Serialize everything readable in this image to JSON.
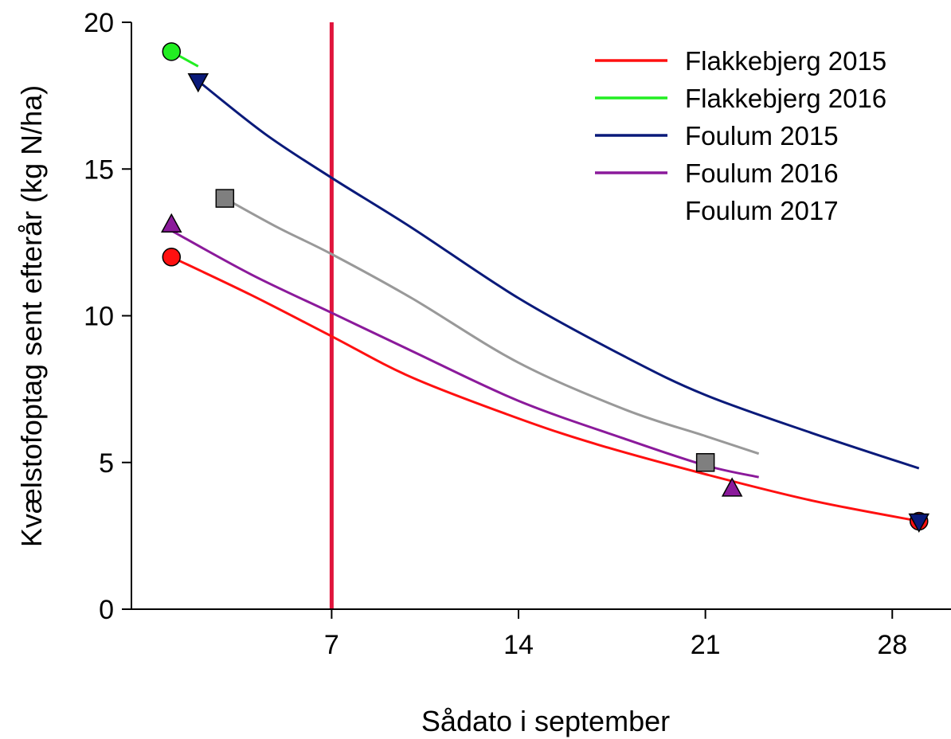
{
  "chart_data": {
    "type": "scatter",
    "xlabel": "Sådato i september",
    "ylabel": "Kvælstofoptag sent efterår (kg N/ha)",
    "xlim": [
      -0.5,
      30.2
    ],
    "ylim": [
      0,
      20
    ],
    "xticks": [
      7,
      14,
      21,
      28
    ],
    "yticks": [
      0,
      5,
      10,
      15,
      20
    ],
    "grid": false,
    "legend_position": "top-right",
    "reference_line": {
      "x": 7,
      "color": "#e0143c"
    },
    "series": [
      {
        "name": "Flakkebjerg 2015",
        "color": "#ff1010",
        "marker": "circle",
        "marker_color": "#ff1010",
        "points": [
          {
            "x": 1,
            "y": 12
          },
          {
            "x": 29,
            "y": 3
          }
        ],
        "curve": [
          [
            1,
            12.0
          ],
          [
            4,
            10.7
          ],
          [
            7,
            9.3
          ],
          [
            10,
            7.9
          ],
          [
            14,
            6.5
          ],
          [
            17,
            5.6
          ],
          [
            21,
            4.6
          ],
          [
            25,
            3.7
          ],
          [
            29,
            3.0
          ]
        ]
      },
      {
        "name": "Flakkebjerg 2016",
        "color": "#22ee22",
        "marker": "circle",
        "marker_color": "#22ee22",
        "points": [
          {
            "x": 1,
            "y": 19
          }
        ],
        "curve": [
          [
            1,
            19.0
          ],
          [
            2,
            18.5
          ]
        ]
      },
      {
        "name": "Foulum 2015",
        "color": "#0a1a7a",
        "marker": "triangle-down",
        "marker_color": "#0a1a7a",
        "points": [
          {
            "x": 2,
            "y": 18
          },
          {
            "x": 29,
            "y": 3
          }
        ],
        "curve": [
          [
            2,
            18.0
          ],
          [
            4.5,
            16.2
          ],
          [
            7,
            14.7
          ],
          [
            10,
            13.0
          ],
          [
            14,
            10.6
          ],
          [
            18,
            8.6
          ],
          [
            21,
            7.3
          ],
          [
            25,
            6.0
          ],
          [
            29,
            4.8
          ]
        ]
      },
      {
        "name": "Foulum 2016",
        "color": "#8b1a9b",
        "marker": "triangle-up",
        "marker_color": "#8b1a9b",
        "points": [
          {
            "x": 1,
            "y": 13.1
          },
          {
            "x": 22,
            "y": 4.1
          }
        ],
        "curve": [
          [
            1,
            12.9
          ],
          [
            4,
            11.4
          ],
          [
            7,
            10.1
          ],
          [
            10,
            8.8
          ],
          [
            14,
            7.1
          ],
          [
            18,
            5.8
          ],
          [
            21,
            4.9
          ],
          [
            23,
            4.5
          ]
        ]
      },
      {
        "name": "Foulum 2017",
        "color": "#999999",
        "marker": "square",
        "marker_color": "#7f7f7f",
        "points": [
          {
            "x": 3,
            "y": 14
          },
          {
            "x": 21,
            "y": 5
          }
        ],
        "curve": [
          [
            3,
            14.0
          ],
          [
            5,
            13.0
          ],
          [
            7,
            12.1
          ],
          [
            10,
            10.6
          ],
          [
            14,
            8.4
          ],
          [
            18,
            6.8
          ],
          [
            21,
            5.9
          ],
          [
            23,
            5.3
          ]
        ]
      }
    ]
  }
}
